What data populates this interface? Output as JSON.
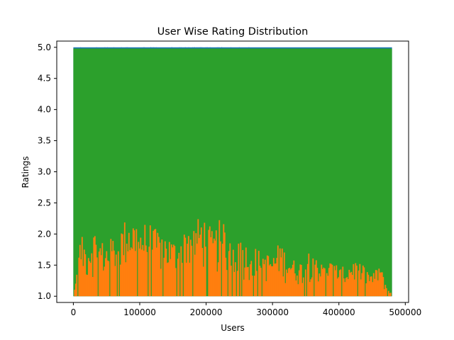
{
  "chart_data": {
    "type": "area",
    "title": "User Wise Rating Distribution",
    "xlabel": "Users",
    "ylabel": "Ratings",
    "xlim": [
      -25000,
      505000
    ],
    "ylim": [
      0.9,
      5.1
    ],
    "x_ticks": [
      0,
      100000,
      200000,
      300000,
      400000,
      500000
    ],
    "x_tick_labels": [
      "0",
      "100000",
      "200000",
      "300000",
      "400000",
      "500000"
    ],
    "y_ticks": [
      1.0,
      1.5,
      2.0,
      2.5,
      3.0,
      3.5,
      4.0,
      4.5,
      5.0
    ],
    "y_tick_labels": [
      "1.0",
      "1.5",
      "2.0",
      "2.5",
      "3.0",
      "3.5",
      "4.0",
      "4.5",
      "5.0"
    ],
    "grid": false,
    "legend": "none",
    "user_range": [
      0,
      480000
    ],
    "series": [
      {
        "color": "#1f77b4",
        "description": "max rating per user",
        "x": [
          0,
          480000
        ],
        "values": [
          5.0,
          5.0
        ]
      },
      {
        "color": "#2ca02c",
        "description": "mean rating per user",
        "x": [
          0,
          480000
        ],
        "values": [
          4.98,
          4.98
        ]
      },
      {
        "color": "#ff7f0e",
        "description": "min rating per user",
        "x": [
          0,
          10000,
          20000,
          30000,
          40000,
          50000,
          60000,
          70000,
          80000,
          90000,
          100000,
          110000,
          120000,
          130000,
          140000,
          150000,
          160000,
          170000,
          180000,
          190000,
          200000,
          210000,
          220000,
          230000,
          240000,
          250000,
          260000,
          270000,
          280000,
          290000,
          300000,
          310000,
          320000,
          330000,
          340000,
          350000,
          360000,
          370000,
          380000,
          390000,
          400000,
          410000,
          420000,
          430000,
          440000,
          450000,
          460000,
          470000,
          480000
        ],
        "values": [
          1.0,
          2.0,
          1.8,
          2.1,
          1.9,
          1.85,
          2.0,
          2.1,
          2.3,
          2.25,
          2.15,
          2.2,
          2.1,
          2.05,
          2.0,
          1.9,
          1.95,
          2.2,
          2.15,
          2.3,
          2.25,
          2.0,
          2.25,
          2.1,
          1.95,
          1.9,
          1.85,
          1.8,
          1.75,
          1.7,
          1.65,
          1.9,
          1.7,
          1.6,
          1.55,
          1.65,
          1.95,
          1.5,
          1.6,
          1.55,
          1.5,
          1.45,
          1.6,
          1.55,
          1.45,
          1.35,
          1.55,
          1.2,
          1.0
        ]
      }
    ]
  }
}
